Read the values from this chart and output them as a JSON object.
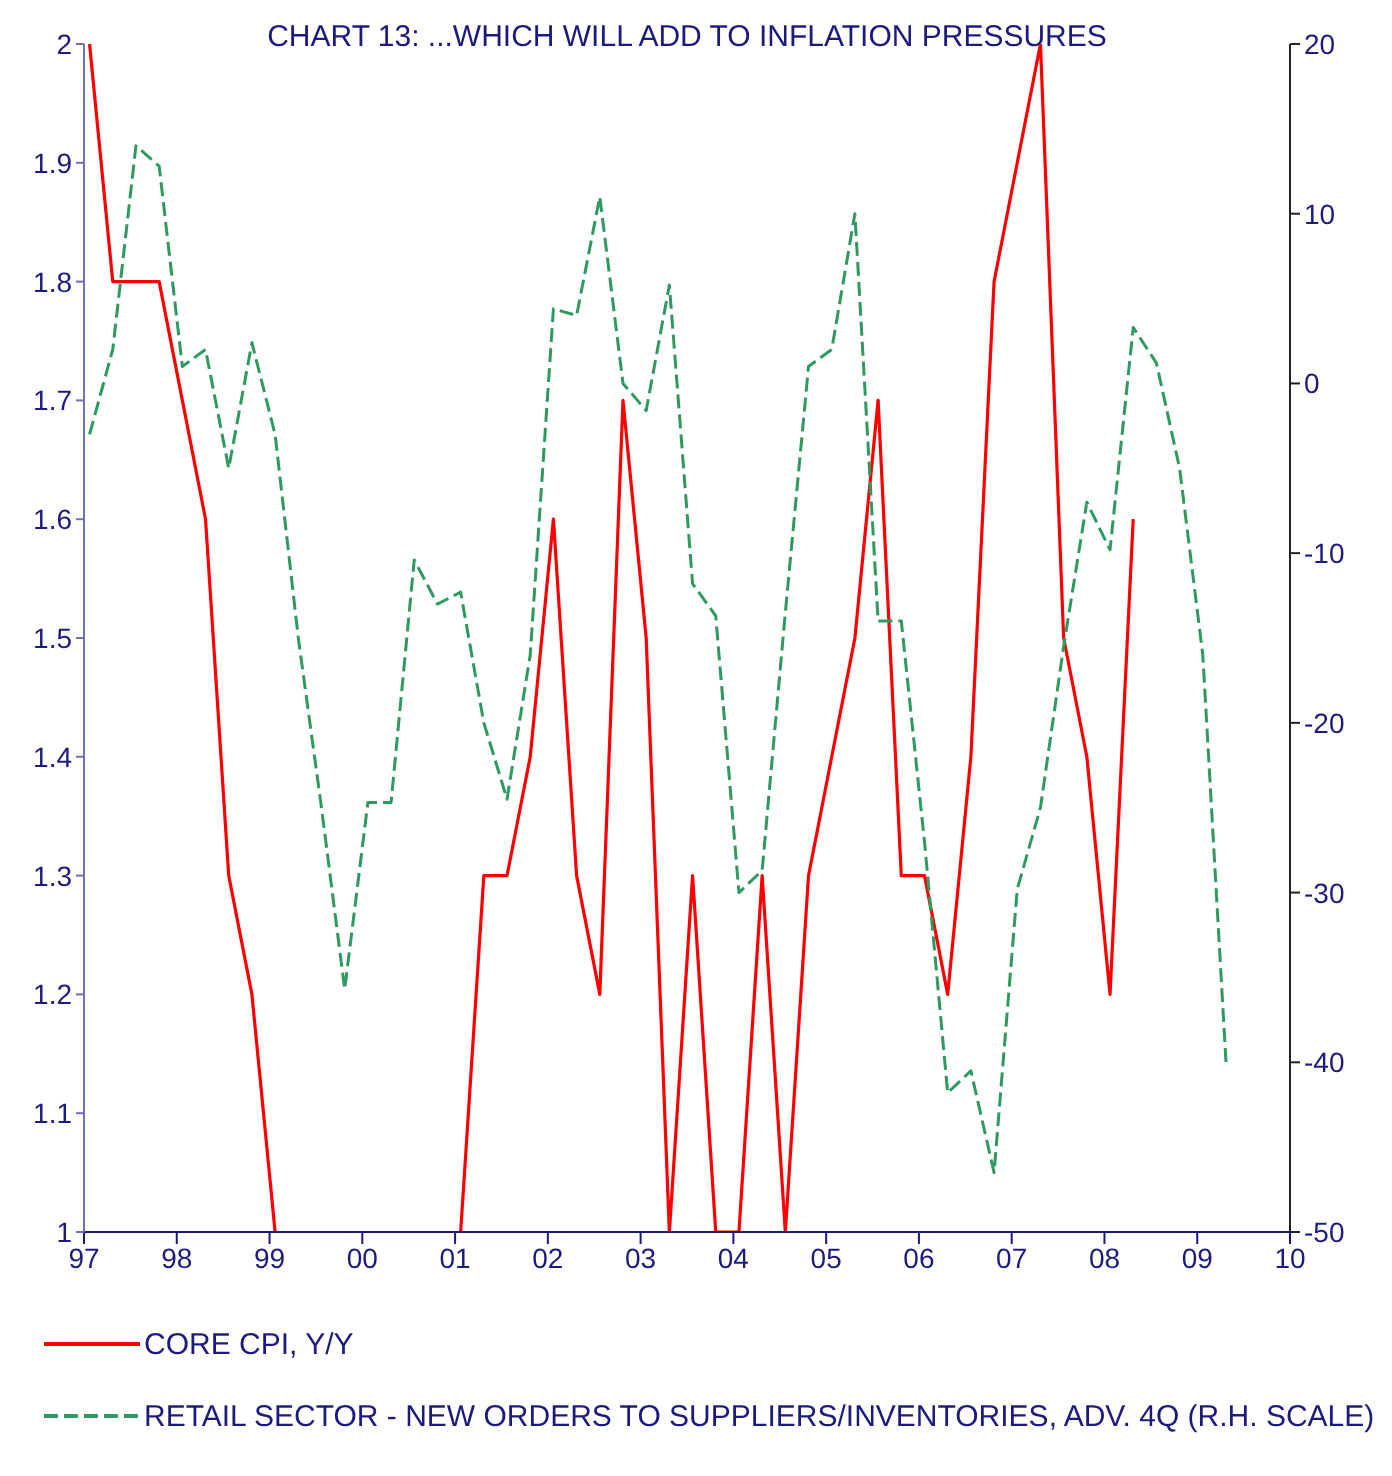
{
  "chart_data": {
    "type": "line",
    "title": "CHART 13: ...WHICH WILL ADD TO INFLATION PRESSURES",
    "x": [
      1997.06,
      1997.31,
      1997.56,
      1997.81,
      1998.06,
      1998.31,
      1998.56,
      1998.81,
      1999.06,
      1999.31,
      1999.56,
      1999.81,
      2000.06,
      2000.31,
      2000.56,
      2000.81,
      2001.06,
      2001.31,
      2001.56,
      2001.81,
      2002.06,
      2002.31,
      2002.56,
      2002.81,
      2003.06,
      2003.31,
      2003.56,
      2003.81,
      2004.06,
      2004.31,
      2004.56,
      2004.81,
      2005.06,
      2005.31,
      2005.56,
      2005.81,
      2006.06,
      2006.31,
      2006.56,
      2006.81,
      2007.06,
      2007.31,
      2007.56,
      2007.81,
      2008.06,
      2008.31,
      2008.56,
      2008.81,
      2009.06,
      2009.31
    ],
    "series": [
      {
        "name": "CORE CPI, Y/Y",
        "color": "#ff0000",
        "line_style": "solid",
        "values": [
          2.0,
          1.8,
          1.8,
          1.8,
          1.7,
          1.6,
          1.3,
          1.2,
          1.0,
          null,
          null,
          null,
          null,
          null,
          null,
          null,
          1.0,
          1.3,
          1.3,
          1.4,
          1.6,
          1.3,
          1.2,
          1.7,
          1.5,
          1.0,
          1.3,
          1.0,
          1.0,
          1.3,
          1.0,
          1.3,
          1.4,
          1.5,
          1.7,
          1.3,
          1.3,
          1.2,
          1.4,
          1.8,
          1.9,
          2.0,
          1.5,
          1.4,
          1.2,
          1.6,
          null,
          null,
          null,
          null
        ]
      },
      {
        "name": "RETAIL SECTOR - NEW ORDERS TO SUPPLIERS/INVENTORIES, ADV. 4Q (R.H. SCALE)",
        "color": "#2e9a5f",
        "line_style": "dashed",
        "axis": "y2",
        "values": [
          -3,
          2,
          14,
          12.8,
          1,
          2,
          -5,
          2.4,
          -3,
          -15,
          -25,
          -35.7,
          -24.7,
          -24.7,
          -10.4,
          -13,
          -12.3,
          -20,
          -24.5,
          -16,
          4.4,
          4,
          11,
          0,
          -1.6,
          5.8,
          -11.8,
          -13.7,
          -30,
          -28.7,
          -13.5,
          1,
          2,
          10,
          -14,
          -14,
          -27,
          -41.8,
          -40.5,
          -46.5,
          -29.8,
          -25,
          -15.5,
          -7,
          -9.8,
          3.3,
          1.2,
          -5,
          -16,
          -40
        ]
      }
    ],
    "xlim": [
      1997,
      2010
    ],
    "xticks": [
      {
        "value": 1997,
        "label": "97"
      },
      {
        "value": 1998,
        "label": "98"
      },
      {
        "value": 1999,
        "label": "99"
      },
      {
        "value": 2000,
        "label": "00"
      },
      {
        "value": 2001,
        "label": "01"
      },
      {
        "value": 2002,
        "label": "02"
      },
      {
        "value": 2003,
        "label": "03"
      },
      {
        "value": 2004,
        "label": "04"
      },
      {
        "value": 2005,
        "label": "05"
      },
      {
        "value": 2006,
        "label": "06"
      },
      {
        "value": 2007,
        "label": "07"
      },
      {
        "value": 2008,
        "label": "08"
      },
      {
        "value": 2009,
        "label": "09"
      },
      {
        "value": 2010,
        "label": "10"
      }
    ],
    "ylim": [
      1,
      2
    ],
    "yticks": [
      1,
      1.1,
      1.2,
      1.3,
      1.4,
      1.5,
      1.6,
      1.7,
      1.8,
      1.9,
      2
    ],
    "y2lim": [
      -50,
      20
    ],
    "y2ticks": [
      -50,
      -40,
      -30,
      -20,
      -10,
      0,
      10,
      20
    ],
    "grid": false,
    "marker": "none",
    "legend": "bottom"
  }
}
